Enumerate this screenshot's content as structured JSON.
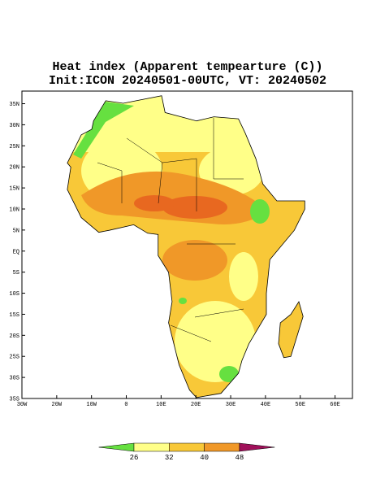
{
  "title": {
    "line1": "Heat index (Apparent tempearture (C))",
    "line2": "Init:ICON 20240501-00UTC, VT: 20240502"
  },
  "map": {
    "xlim": [
      -30,
      65
    ],
    "ylim": [
      -35,
      38
    ],
    "xticks": [
      {
        "value": -30,
        "label": "30W"
      },
      {
        "value": -20,
        "label": "20W"
      },
      {
        "value": -10,
        "label": "10W"
      },
      0,
      {
        "value": 10,
        "label": "10E"
      },
      {
        "value": 20,
        "label": "20E"
      },
      {
        "value": 30,
        "label": "30E"
      },
      {
        "value": 40,
        "label": "40E"
      },
      {
        "value": 50,
        "label": "50E"
      },
      {
        "value": 60,
        "label": "60E"
      }
    ],
    "yticks": [
      {
        "value": -35,
        "label": "35S"
      },
      {
        "value": -30,
        "label": "30S"
      },
      {
        "value": -25,
        "label": "25S"
      },
      {
        "value": -20,
        "label": "20S"
      },
      {
        "value": -15,
        "label": "15S"
      },
      {
        "value": -10,
        "label": "10S"
      },
      {
        "value": -5,
        "label": "5S"
      },
      {
        "value": 0,
        "label": "EQ"
      },
      {
        "value": 5,
        "label": "5N"
      },
      {
        "value": 10,
        "label": "10N"
      },
      {
        "value": 15,
        "label": "15N"
      },
      {
        "value": 20,
        "label": "20N"
      },
      {
        "value": 25,
        "label": "25N"
      },
      {
        "value": 30,
        "label": "30N"
      },
      {
        "value": 35,
        "label": "35N"
      }
    ]
  },
  "colorbar": {
    "levels": [
      26,
      32,
      40,
      48
    ],
    "colors": [
      "#66e040",
      "#ffff88",
      "#f8c838",
      "#f09828",
      "#a0105a"
    ]
  }
}
